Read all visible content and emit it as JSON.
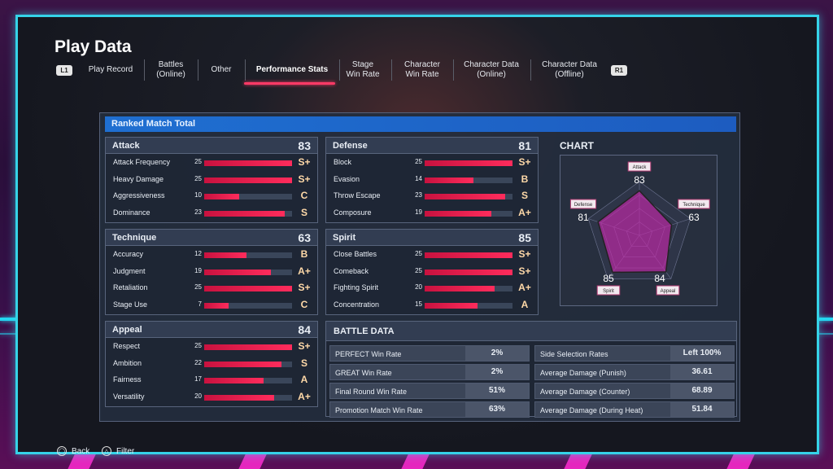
{
  "title": "Play Data",
  "bumpers": {
    "left": "L1",
    "right": "R1"
  },
  "tabs": [
    {
      "label": "Play Record"
    },
    {
      "label": "Battles\n(Online)"
    },
    {
      "label": "Other"
    },
    {
      "label": "Performance Stats",
      "active": true
    },
    {
      "label": "Stage\nWin Rate"
    },
    {
      "label": "Character\nWin Rate"
    },
    {
      "label": "Character Data\n(Online)"
    },
    {
      "label": "Character Data\n(Offline)"
    }
  ],
  "panel_title": "Ranked Match Total",
  "categories": {
    "attack": {
      "name": "Attack",
      "score": "83",
      "rows": [
        {
          "label": "Attack Frequency",
          "value": "25",
          "grade": "S+"
        },
        {
          "label": "Heavy Damage",
          "value": "25",
          "grade": "S+"
        },
        {
          "label": "Aggressiveness",
          "value": "10",
          "grade": "C"
        },
        {
          "label": "Dominance",
          "value": "23",
          "grade": "S"
        }
      ]
    },
    "defense": {
      "name": "Defense",
      "score": "81",
      "rows": [
        {
          "label": "Block",
          "value": "25",
          "grade": "S+"
        },
        {
          "label": "Evasion",
          "value": "14",
          "grade": "B"
        },
        {
          "label": "Throw Escape",
          "value": "23",
          "grade": "S"
        },
        {
          "label": "Composure",
          "value": "19",
          "grade": "A+"
        }
      ]
    },
    "technique": {
      "name": "Technique",
      "score": "63",
      "rows": [
        {
          "label": "Accuracy",
          "value": "12",
          "grade": "B"
        },
        {
          "label": "Judgment",
          "value": "19",
          "grade": "A+"
        },
        {
          "label": "Retaliation",
          "value": "25",
          "grade": "S+"
        },
        {
          "label": "Stage Use",
          "value": "7",
          "grade": "C"
        }
      ]
    },
    "spirit": {
      "name": "Spirit",
      "score": "85",
      "rows": [
        {
          "label": "Close Battles",
          "value": "25",
          "grade": "S+"
        },
        {
          "label": "Comeback",
          "value": "25",
          "grade": "S+"
        },
        {
          "label": "Fighting Spirit",
          "value": "20",
          "grade": "A+"
        },
        {
          "label": "Concentration",
          "value": "15",
          "grade": "A"
        }
      ]
    },
    "appeal": {
      "name": "Appeal",
      "score": "84",
      "rows": [
        {
          "label": "Respect",
          "value": "25",
          "grade": "S+"
        },
        {
          "label": "Ambition",
          "value": "22",
          "grade": "S"
        },
        {
          "label": "Fairness",
          "value": "17",
          "grade": "A"
        },
        {
          "label": "Versatility",
          "value": "20",
          "grade": "A+"
        }
      ]
    }
  },
  "stat_max": 25,
  "chart": {
    "title": "CHART",
    "axes": [
      {
        "label": "Attack",
        "value": "83"
      },
      {
        "label": "Technique",
        "value": "63"
      },
      {
        "label": "Appeal",
        "value": "84"
      },
      {
        "label": "Spirit",
        "value": "85"
      },
      {
        "label": "Defense",
        "value": "81"
      }
    ],
    "max": 100
  },
  "battle_data": {
    "title": "BATTLE DATA",
    "left": [
      {
        "label": "PERFECT Win Rate",
        "value": "2%"
      },
      {
        "label": "GREAT Win Rate",
        "value": "2%"
      },
      {
        "label": "Final Round Win Rate",
        "value": "51%"
      },
      {
        "label": "Promotion Match Win Rate",
        "value": "63%"
      }
    ],
    "right": [
      {
        "label": "Side Selection Rates",
        "value": "Left  100%"
      },
      {
        "label": "Average Damage (Punish)",
        "value": "36.61"
      },
      {
        "label": "Average Damage (Counter)",
        "value": "68.89"
      },
      {
        "label": "Average Damage (During Heat)",
        "value": "51.84"
      }
    ]
  },
  "footer": {
    "back": "Back",
    "filter": "Filter"
  },
  "colors": {
    "accent": "#ff3a66",
    "frame": "#35d3e8",
    "header": "#1f6fd1"
  }
}
